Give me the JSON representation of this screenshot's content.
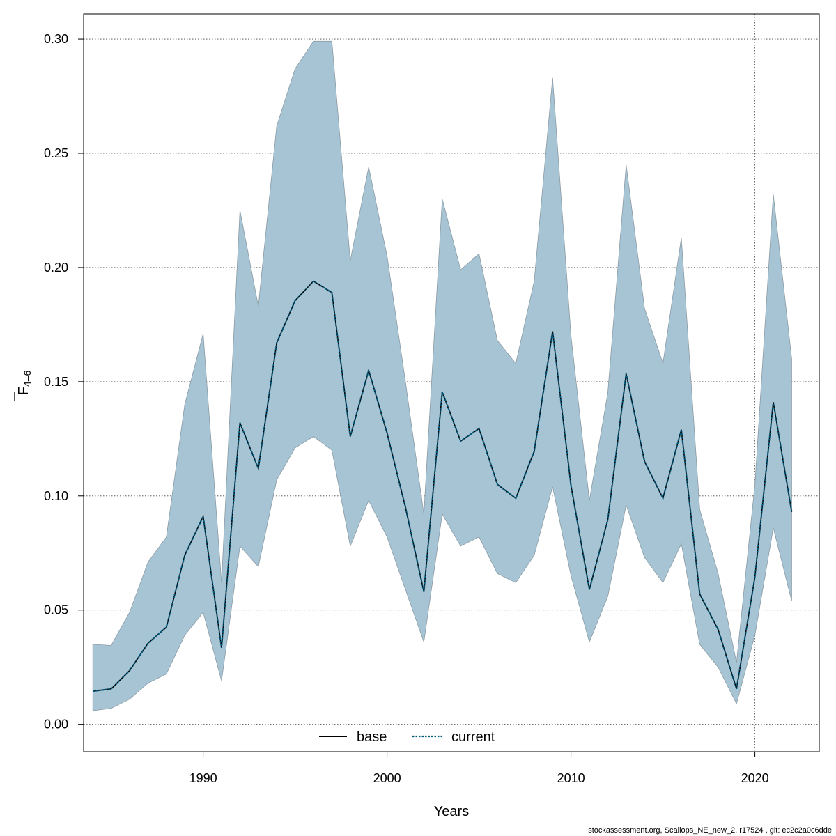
{
  "chart_data": {
    "type": "area",
    "title": "",
    "xlabel": "Years",
    "ylabel": {
      "base": "F",
      "subscript": "4–6"
    },
    "xlim": [
      1983.5,
      2023.5
    ],
    "ylim": [
      -0.012,
      0.311
    ],
    "x_ticks": [
      1990,
      2000,
      2010,
      2020
    ],
    "y_ticks": [
      0.0,
      0.05,
      0.1,
      0.15,
      0.2,
      0.25,
      0.3
    ],
    "y_tick_labels": [
      "0.00",
      "0.05",
      "0.10",
      "0.15",
      "0.20",
      "0.25",
      "0.30"
    ],
    "grid": true,
    "legend_position": "bottom",
    "colors": {
      "band_fill": "#a7c4d4",
      "band_stroke": "#8a9aa4",
      "current_line": "#00587a",
      "base_line": "#000000",
      "grid": "#444444"
    },
    "x": [
      1984,
      1985,
      1986,
      1987,
      1988,
      1989,
      1990,
      1991,
      1992,
      1993,
      1994,
      1995,
      1996,
      1997,
      1998,
      1999,
      2000,
      2001,
      2002,
      2003,
      2004,
      2005,
      2006,
      2007,
      2008,
      2009,
      2010,
      2011,
      2012,
      2013,
      2014,
      2015,
      2016,
      2017,
      2018,
      2019,
      2020,
      2021,
      2022
    ],
    "band": {
      "upper": [
        0.035,
        0.0345,
        0.049,
        0.071,
        0.082,
        0.14,
        0.171,
        0.062,
        0.225,
        0.183,
        0.262,
        0.287,
        0.299,
        0.299,
        0.203,
        0.244,
        0.205,
        0.15,
        0.092,
        0.23,
        0.199,
        0.206,
        0.168,
        0.158,
        0.194,
        0.283,
        0.17,
        0.098,
        0.145,
        0.245,
        0.182,
        0.158,
        0.213,
        0.094,
        0.066,
        0.027,
        0.105,
        0.232,
        0.16
      ],
      "lower": [
        0.006,
        0.007,
        0.011,
        0.018,
        0.022,
        0.039,
        0.049,
        0.019,
        0.078,
        0.069,
        0.107,
        0.121,
        0.126,
        0.12,
        0.078,
        0.098,
        0.082,
        0.059,
        0.036,
        0.092,
        0.078,
        0.082,
        0.066,
        0.062,
        0.074,
        0.104,
        0.065,
        0.036,
        0.056,
        0.096,
        0.073,
        0.062,
        0.079,
        0.035,
        0.025,
        0.009,
        0.039,
        0.086,
        0.054
      ]
    },
    "series": [
      {
        "name": "base",
        "style": "solid",
        "values": [
          0.0145,
          0.0155,
          0.0235,
          0.0355,
          0.0425,
          0.074,
          0.091,
          0.0335,
          0.132,
          0.112,
          0.167,
          0.1855,
          0.194,
          0.189,
          0.126,
          0.155,
          0.1275,
          0.095,
          0.058,
          0.1455,
          0.124,
          0.1295,
          0.105,
          0.099,
          0.1195,
          0.172,
          0.1045,
          0.059,
          0.0895,
          0.1535,
          0.115,
          0.099,
          0.129,
          0.057,
          0.0415,
          0.0155,
          0.0645,
          0.141,
          0.093
        ]
      },
      {
        "name": "current",
        "style": "dotted",
        "values": [
          0.0145,
          0.0155,
          0.0235,
          0.0355,
          0.0425,
          0.074,
          0.091,
          0.0335,
          0.132,
          0.112,
          0.167,
          0.1855,
          0.194,
          0.189,
          0.126,
          0.155,
          0.1275,
          0.095,
          0.058,
          0.1455,
          0.124,
          0.1295,
          0.105,
          0.099,
          0.1195,
          0.172,
          0.1045,
          0.059,
          0.0895,
          0.1535,
          0.115,
          0.099,
          0.129,
          0.057,
          0.0415,
          0.0155,
          0.0645,
          0.141,
          0.093
        ]
      }
    ],
    "footer": "stockassessment.org, Scallops_NE_new_2, r17524 , git: ec2c2a0c6dde"
  }
}
